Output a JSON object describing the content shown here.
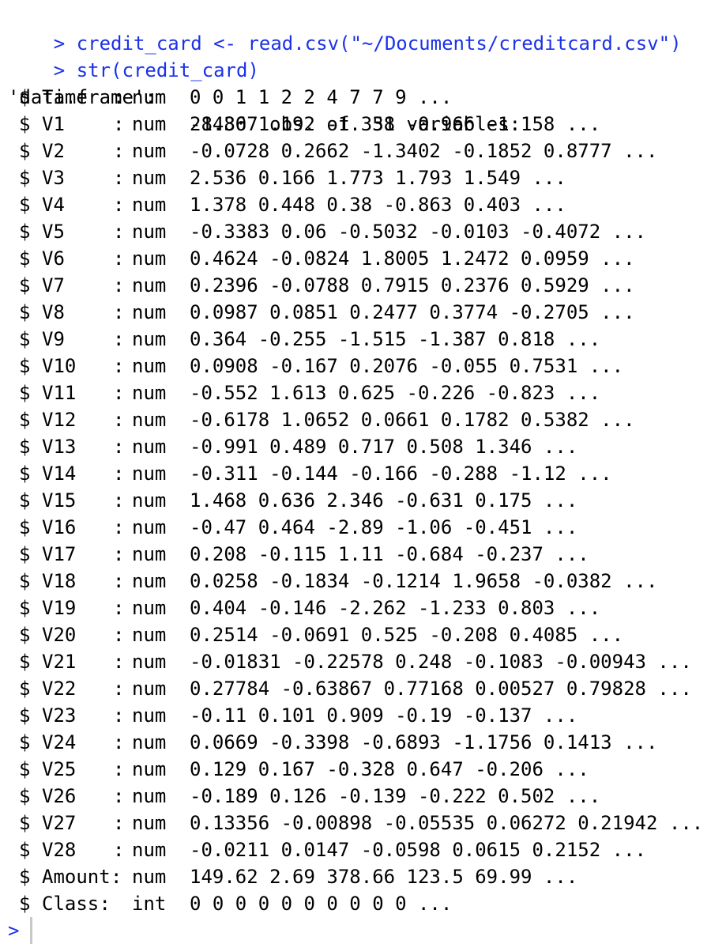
{
  "console": {
    "commands": [
      {
        "prompt": ">",
        "text": "credit_card <- read.csv(\"~/Documents/creditcard.csv\")"
      },
      {
        "prompt": ">",
        "text": "str(credit_card)"
      }
    ],
    "header": {
      "left": "'data.frame':",
      "right": "284807 obs. of  31 variables:"
    },
    "fields": [
      {
        "name": "Time",
        "colon": ":",
        "type": "num",
        "values": "0 0 1 1 2 2 4 7 7 9 ..."
      },
      {
        "name": "V1",
        "colon": ":",
        "type": "num",
        "values": "-1.36 1.192 -1.358 -0.966 -1.158 ..."
      },
      {
        "name": "V2",
        "colon": ":",
        "type": "num",
        "values": "-0.0728 0.2662 -1.3402 -0.1852 0.8777 ..."
      },
      {
        "name": "V3",
        "colon": ":",
        "type": "num",
        "values": "2.536 0.166 1.773 1.793 1.549 ..."
      },
      {
        "name": "V4",
        "colon": ":",
        "type": "num",
        "values": "1.378 0.448 0.38 -0.863 0.403 ..."
      },
      {
        "name": "V5",
        "colon": ":",
        "type": "num",
        "values": "-0.3383 0.06 -0.5032 -0.0103 -0.4072 ..."
      },
      {
        "name": "V6",
        "colon": ":",
        "type": "num",
        "values": "0.4624 -0.0824 1.8005 1.2472 0.0959 ..."
      },
      {
        "name": "V7",
        "colon": ":",
        "type": "num",
        "values": "0.2396 -0.0788 0.7915 0.2376 0.5929 ..."
      },
      {
        "name": "V8",
        "colon": ":",
        "type": "num",
        "values": "0.0987 0.0851 0.2477 0.3774 -0.2705 ..."
      },
      {
        "name": "V9",
        "colon": ":",
        "type": "num",
        "values": "0.364 -0.255 -1.515 -1.387 0.818 ..."
      },
      {
        "name": "V10",
        "colon": ":",
        "type": "num",
        "values": "0.0908 -0.167 0.2076 -0.055 0.7531 ..."
      },
      {
        "name": "V11",
        "colon": ":",
        "type": "num",
        "values": "-0.552 1.613 0.625 -0.226 -0.823 ..."
      },
      {
        "name": "V12",
        "colon": ":",
        "type": "num",
        "values": "-0.6178 1.0652 0.0661 0.1782 0.5382 ..."
      },
      {
        "name": "V13",
        "colon": ":",
        "type": "num",
        "values": "-0.991 0.489 0.717 0.508 1.346 ..."
      },
      {
        "name": "V14",
        "colon": ":",
        "type": "num",
        "values": "-0.311 -0.144 -0.166 -0.288 -1.12 ..."
      },
      {
        "name": "V15",
        "colon": ":",
        "type": "num",
        "values": "1.468 0.636 2.346 -0.631 0.175 ..."
      },
      {
        "name": "V16",
        "colon": ":",
        "type": "num",
        "values": "-0.47 0.464 -2.89 -1.06 -0.451 ..."
      },
      {
        "name": "V17",
        "colon": ":",
        "type": "num",
        "values": "0.208 -0.115 1.11 -0.684 -0.237 ..."
      },
      {
        "name": "V18",
        "colon": ":",
        "type": "num",
        "values": "0.0258 -0.1834 -0.1214 1.9658 -0.0382 ..."
      },
      {
        "name": "V19",
        "colon": ":",
        "type": "num",
        "values": "0.404 -0.146 -2.262 -1.233 0.803 ..."
      },
      {
        "name": "V20",
        "colon": ":",
        "type": "num",
        "values": "0.2514 -0.0691 0.525 -0.208 0.4085 ..."
      },
      {
        "name": "V21",
        "colon": ":",
        "type": "num",
        "values": "-0.01831 -0.22578 0.248 -0.1083 -0.00943 ..."
      },
      {
        "name": "V22",
        "colon": ":",
        "type": "num",
        "values": "0.27784 -0.63867 0.77168 0.00527 0.79828 ..."
      },
      {
        "name": "V23",
        "colon": ":",
        "type": "num",
        "values": "-0.11 0.101 0.909 -0.19 -0.137 ..."
      },
      {
        "name": "V24",
        "colon": ":",
        "type": "num",
        "values": "0.0669 -0.3398 -0.6893 -1.1756 0.1413 ..."
      },
      {
        "name": "V25",
        "colon": ":",
        "type": "num",
        "values": "0.129 0.167 -0.328 0.647 -0.206 ..."
      },
      {
        "name": "V26",
        "colon": ":",
        "type": "num",
        "values": "-0.189 0.126 -0.139 -0.222 0.502 ..."
      },
      {
        "name": "V27",
        "colon": ":",
        "type": "num",
        "values": "0.13356 -0.00898 -0.05535 0.06272 0.21942 ..."
      },
      {
        "name": "V28",
        "colon": ":",
        "type": "num",
        "values": "-0.0211 0.0147 -0.0598 0.0615 0.2152 ..."
      },
      {
        "name": "Amount",
        "colon": ":",
        "type": "num",
        "values": "149.62 2.69 378.66 123.5 69.99 ..."
      },
      {
        "name": "Class",
        "colon": ":",
        "type": "int",
        "values": "0 0 0 0 0 0 0 0 0 0 ..."
      }
    ],
    "active_prompt": ">",
    "colors": {
      "command_text": "#1b32e8",
      "output_text": "#000000",
      "cursor": "#c8c8c8"
    }
  }
}
